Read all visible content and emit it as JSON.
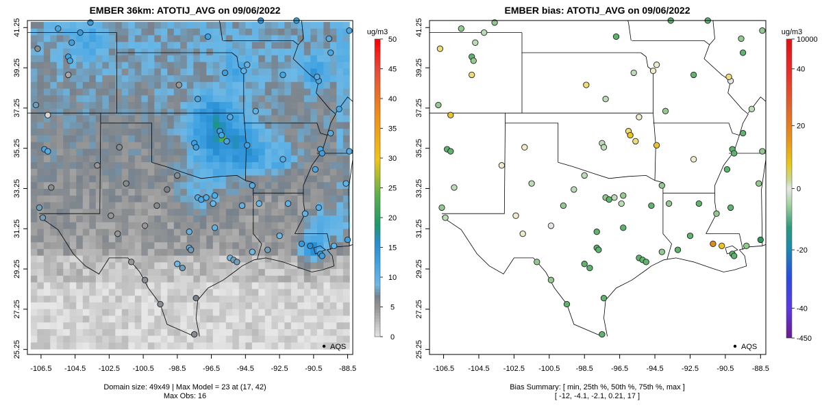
{
  "left_panel": {
    "title": "EMBER 36km: ATOTIJ_AVG on 09/06/2022",
    "units": "ug/m3",
    "legend_label": "AQS",
    "footer_line1": "Domain size: 49x49 | Max Model = 23 at (17, 42)",
    "footer_line2": "Max Obs: 16",
    "colorbar_ticks": [
      "0",
      "5",
      "10",
      "15",
      "20",
      "25",
      "30",
      "35",
      "40",
      "45",
      "50"
    ],
    "colorbar_range": [
      0,
      50
    ]
  },
  "right_panel": {
    "title": "EMBER bias: ATOTIJ_AVG on 09/06/2022",
    "units": "ug/m3",
    "legend_label": "AQS",
    "footer_line1": "Bias Summary: [ min, 25th %, 50th %, 75th %, max ]",
    "footer_line2": "[ -12,   -4.1,   -2.1,   0.21,   17 ]",
    "colorbar_ticks": [
      "-450",
      "-40",
      "-20",
      "0",
      "20",
      "40",
      "10000"
    ]
  },
  "axes": {
    "x_ticks": [
      "-106.5",
      "-104.5",
      "-102.5",
      "-100.5",
      "-98.5",
      "-96.5",
      "-94.5",
      "-92.5",
      "-90.5",
      "-88.5"
    ],
    "y_ticks": [
      "25.25",
      "27.25",
      "29.25",
      "31.25",
      "33.25",
      "35.25",
      "37.25",
      "39.25",
      "41.25"
    ],
    "x_range": [
      -107.3,
      -88.2
    ],
    "y_range": [
      25.0,
      41.6
    ]
  },
  "colors": {
    "no_data_gray": "#e4e4e4",
    "concentration_scale": [
      "#e6e6e6",
      "#9a9a9a",
      "#6cb8e6",
      "#2a8fd0",
      "#1a9a6a",
      "#5ab04a",
      "#b8cc3a",
      "#f0c418",
      "#f08a18",
      "#e84a3a",
      "#ff0000"
    ],
    "bias_scale": [
      "#5a1a8a",
      "#3a3ad8",
      "#1a9a8a",
      "#dfe6df",
      "#e8c818",
      "#e87818",
      "#e01a1a"
    ]
  },
  "observations_left": [
    {
      "lon": -106.3,
      "lat": 35.2,
      "v": 12
    },
    {
      "lon": -106.1,
      "lat": 35.1,
      "v": 11
    },
    {
      "lon": -106.6,
      "lat": 32.3,
      "v": 8
    },
    {
      "lon": -106.4,
      "lat": 31.8,
      "v": 8
    },
    {
      "lon": -106.1,
      "lat": 36.9,
      "v": 1
    },
    {
      "lon": -106.8,
      "lat": 37.4,
      "v": 8
    },
    {
      "lon": -104.9,
      "lat": 39.8,
      "v": 13
    },
    {
      "lon": -104.8,
      "lat": 39.6,
      "v": 12
    },
    {
      "lon": -104.7,
      "lat": 40.5,
      "v": 13
    },
    {
      "lon": -104.9,
      "lat": 38.9,
      "v": 4
    },
    {
      "lon": -105.5,
      "lat": 41.2,
      "v": 12
    },
    {
      "lon": -104.2,
      "lat": 41.0,
      "v": 14
    },
    {
      "lon": -103.6,
      "lat": 41.5,
      "v": 14
    },
    {
      "lon": -101.9,
      "lat": 35.3,
      "v": 6
    },
    {
      "lon": -101.5,
      "lat": 33.5,
      "v": 6
    },
    {
      "lon": -102.4,
      "lat": 31.9,
      "v": 5
    },
    {
      "lon": -102.0,
      "lat": 31.0,
      "v": 5
    },
    {
      "lon": -100.4,
      "lat": 31.4,
      "v": 5
    },
    {
      "lon": -98.5,
      "lat": 33.9,
      "v": 6
    },
    {
      "lon": -97.5,
      "lat": 35.5,
      "v": 13
    },
    {
      "lon": -97.4,
      "lat": 35.3,
      "v": 13
    },
    {
      "lon": -96.0,
      "lat": 36.1,
      "v": 13
    },
    {
      "lon": -95.9,
      "lat": 35.9,
      "v": 12
    },
    {
      "lon": -95.6,
      "lat": 35.6,
      "v": 12
    },
    {
      "lon": -94.4,
      "lat": 35.4,
      "v": 13
    },
    {
      "lon": -92.3,
      "lat": 34.7,
      "v": 11
    },
    {
      "lon": -93.9,
      "lat": 37.1,
      "v": 10
    },
    {
      "lon": -94.6,
      "lat": 39.1,
      "v": 10
    },
    {
      "lon": -94.4,
      "lat": 39.4,
      "v": 10
    },
    {
      "lon": -97.3,
      "lat": 37.7,
      "v": 12
    },
    {
      "lon": -97.3,
      "lat": 32.8,
      "v": 11
    },
    {
      "lon": -97.1,
      "lat": 32.7,
      "v": 12
    },
    {
      "lon": -96.8,
      "lat": 32.8,
      "v": 11
    },
    {
      "lon": -96.3,
      "lat": 32.9,
      "v": 11
    },
    {
      "lon": -96.4,
      "lat": 32.5,
      "v": 9
    },
    {
      "lon": -97.8,
      "lat": 30.3,
      "v": 10
    },
    {
      "lon": -97.7,
      "lat": 30.2,
      "v": 8
    },
    {
      "lon": -98.5,
      "lat": 29.5,
      "v": 9
    },
    {
      "lon": -98.2,
      "lat": 29.3,
      "v": 8
    },
    {
      "lon": -95.4,
      "lat": 29.8,
      "v": 9
    },
    {
      "lon": -95.2,
      "lat": 29.7,
      "v": 8
    },
    {
      "lon": -95.0,
      "lat": 29.6,
      "v": 8
    },
    {
      "lon": -94.1,
      "lat": 30.1,
      "v": 9
    },
    {
      "lon": -93.2,
      "lat": 30.2,
      "v": 8
    },
    {
      "lon": -91.2,
      "lat": 30.5,
      "v": 14
    },
    {
      "lon": -90.7,
      "lat": 30.4,
      "v": 16
    },
    {
      "lon": -90.1,
      "lat": 30.0,
      "v": 14
    },
    {
      "lon": -90.0,
      "lat": 29.9,
      "v": 13
    },
    {
      "lon": -89.3,
      "lat": 30.4,
      "v": 10
    },
    {
      "lon": -88.5,
      "lat": 30.7,
      "v": 13
    },
    {
      "lon": -90.2,
      "lat": 32.3,
      "v": 11
    },
    {
      "lon": -90.4,
      "lat": 34.2,
      "v": 12
    },
    {
      "lon": -90.1,
      "lat": 35.2,
      "v": 12
    },
    {
      "lon": -90.0,
      "lat": 35.0,
      "v": 13
    },
    {
      "lon": -89.5,
      "lat": 36.0,
      "v": 11
    },
    {
      "lon": -89.0,
      "lat": 37.2,
      "v": 12
    },
    {
      "lon": -90.2,
      "lat": 38.6,
      "v": 12
    },
    {
      "lon": -90.3,
      "lat": 38.8,
      "v": 11
    },
    {
      "lon": -89.5,
      "lat": 40.0,
      "v": 12
    },
    {
      "lon": -89.6,
      "lat": 40.7,
      "v": 11
    },
    {
      "lon": -88.4,
      "lat": 41.1,
      "v": 12
    },
    {
      "lon": -88.4,
      "lat": 35.1,
      "v": 11
    },
    {
      "lon": -88.6,
      "lat": 33.5,
      "v": 10
    },
    {
      "lon": -93.6,
      "lat": 41.6,
      "v": 14
    },
    {
      "lon": -91.5,
      "lat": 41.6,
      "v": 13
    },
    {
      "lon": -92.3,
      "lat": 38.9,
      "v": 12
    },
    {
      "lon": -95.7,
      "lat": 39.0,
      "v": 13
    },
    {
      "lon": -96.7,
      "lat": 40.8,
      "v": 13
    },
    {
      "lon": -99.1,
      "lat": 33.2,
      "v": 7
    },
    {
      "lon": -94.1,
      "lat": 33.4,
      "v": 11
    },
    {
      "lon": -94.7,
      "lat": 32.4,
      "v": 10
    },
    {
      "lon": -93.7,
      "lat": 32.5,
      "v": 9
    },
    {
      "lon": -92.0,
      "lat": 32.5,
      "v": 10
    },
    {
      "lon": -97.4,
      "lat": 27.8,
      "v": 7
    },
    {
      "lon": -97.5,
      "lat": 26.0,
      "v": 6
    },
    {
      "lon": -99.5,
      "lat": 27.5,
      "v": 6
    },
    {
      "lon": -100.4,
      "lat": 28.7,
      "v": 6
    },
    {
      "lon": -101.2,
      "lat": 29.6,
      "v": 5
    },
    {
      "lon": -105.9,
      "lat": 33.3,
      "v": 6
    },
    {
      "lon": -103.2,
      "lat": 34.4,
      "v": 5
    },
    {
      "lon": -106.7,
      "lat": 40.2,
      "v": 6
    },
    {
      "lon": -98.4,
      "lat": 38.4,
      "v": 5
    },
    {
      "lon": -95.4,
      "lat": 36.8,
      "v": 11
    },
    {
      "lon": -96.3,
      "lat": 31.3,
      "v": 10
    },
    {
      "lon": -97.8,
      "lat": 31.1,
      "v": 10
    },
    {
      "lon": -99.7,
      "lat": 32.4,
      "v": 6
    },
    {
      "lon": -92.5,
      "lat": 30.9,
      "v": 9
    },
    {
      "lon": -91.0,
      "lat": 32.0,
      "v": 10
    }
  ]
}
